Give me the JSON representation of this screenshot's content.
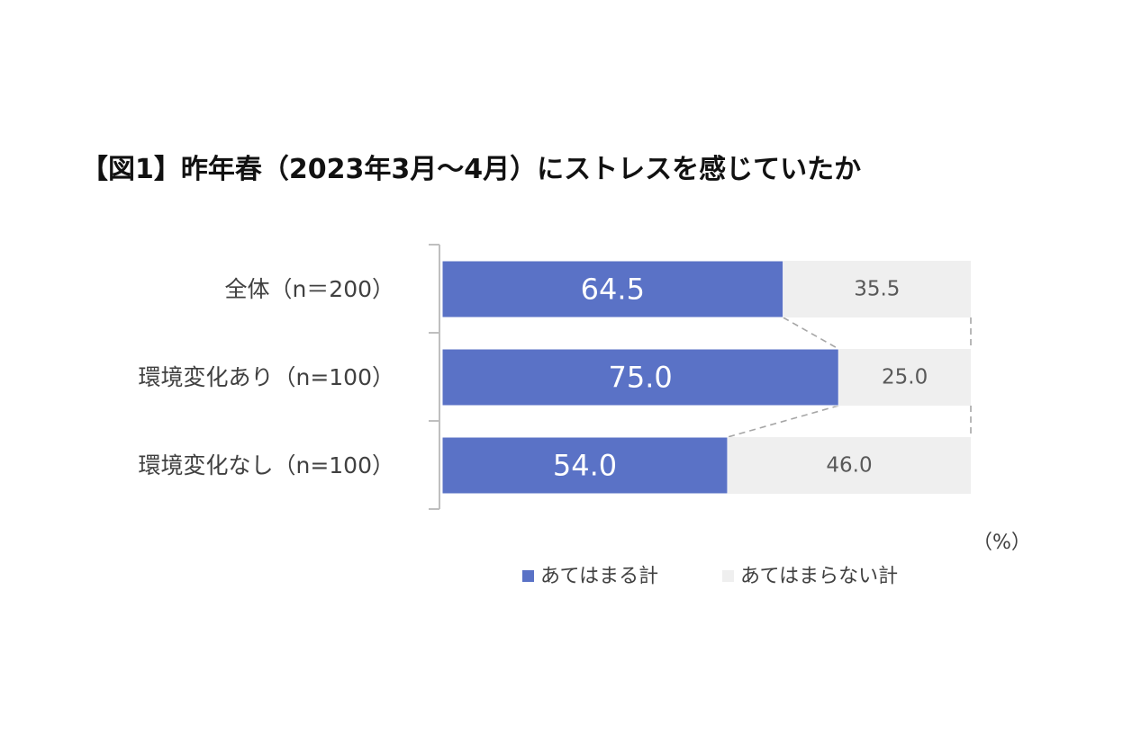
{
  "chart_data": {
    "type": "bar",
    "stacked": true,
    "orientation": "horizontal",
    "title": "【図1】昨年春（2023年3月～4月）にストレスを感じていたか",
    "categories": [
      "全体（n＝200）",
      "環境変化あり（n=100）",
      "環境変化なし（n=100）"
    ],
    "series": [
      {
        "name": "あてはまる計",
        "values": [
          64.5,
          75.0,
          54.0
        ],
        "labels": [
          "64.5",
          "75.0",
          "54.0"
        ],
        "color": "#5a72c6"
      },
      {
        "name": "あてはまらない計",
        "values": [
          35.5,
          25.0,
          46.0
        ],
        "labels": [
          "35.5",
          "25.0",
          "46.0"
        ],
        "color": "#efefef"
      }
    ],
    "xlim": [
      0,
      100
    ],
    "unit_label": "（%）",
    "legend_position": "bottom",
    "series_lines": true,
    "grid": false
  }
}
